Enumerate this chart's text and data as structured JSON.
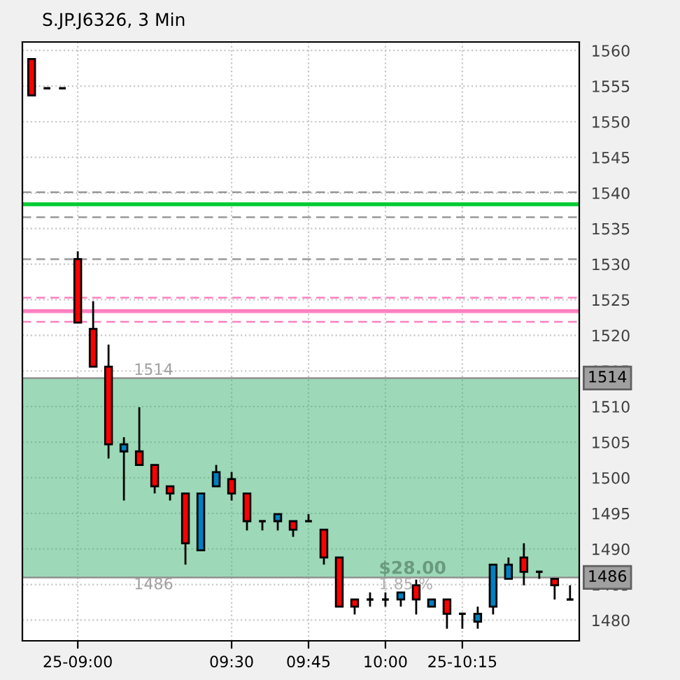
{
  "chart_data": {
    "type": "candlestick",
    "title": "S.JP.J6326, 3 Min",
    "x": [
      8.85,
      8.9,
      8.95,
      9.0,
      9.05,
      9.1,
      9.15,
      9.2,
      9.25,
      9.3,
      9.35,
      9.4,
      9.45,
      9.5,
      9.55,
      9.6,
      9.65,
      9.7,
      9.75,
      9.8,
      9.85,
      9.9,
      9.95,
      10.0,
      10.05,
      10.1,
      10.15,
      10.2,
      10.25,
      10.3,
      10.35,
      10.4,
      10.45,
      10.5,
      10.55,
      10.6
    ],
    "ohlc": [
      [
        1558.8,
        1558.8,
        1553.7,
        1553.7
      ],
      [
        1554.7,
        1554.7,
        1554.7,
        1554.7
      ],
      [
        1554.7,
        1554.7,
        1554.7,
        1554.7
      ],
      [
        1530.7,
        1531.8,
        1521.8,
        1521.8
      ],
      [
        1520.9,
        1524.8,
        1515.6,
        1515.6
      ],
      [
        1515.6,
        1518.7,
        1502.7,
        1504.7
      ],
      [
        1503.7,
        1505.7,
        1496.8,
        1504.7
      ],
      [
        1503.7,
        1509.9,
        1501.8,
        1501.8
      ],
      [
        1501.8,
        1501.8,
        1497.8,
        1498.8
      ],
      [
        1498.8,
        1498.8,
        1496.8,
        1497.8
      ],
      [
        1497.8,
        1497.8,
        1487.8,
        1490.8
      ],
      [
        1489.8,
        1497.8,
        1489.8,
        1497.8
      ],
      [
        1498.8,
        1501.8,
        1498.8,
        1500.8
      ],
      [
        1499.8,
        1500.8,
        1496.8,
        1497.8
      ],
      [
        1497.8,
        1497.8,
        1492.6,
        1493.9
      ],
      [
        1493.9,
        1493.9,
        1492.6,
        1493.9
      ],
      [
        1493.9,
        1494.9,
        1492.6,
        1494.9
      ],
      [
        1493.9,
        1493.9,
        1491.7,
        1492.7
      ],
      [
        1493.9,
        1494.9,
        1493.9,
        1493.9
      ],
      [
        1492.7,
        1492.7,
        1487.8,
        1488.8
      ],
      [
        1488.8,
        1488.8,
        1481.9,
        1481.9
      ],
      [
        1482.9,
        1482.9,
        1480.8,
        1481.9
      ],
      [
        1482.9,
        1483.9,
        1481.9,
        1482.9
      ],
      [
        1482.9,
        1483.9,
        1481.9,
        1482.9
      ],
      [
        1482.9,
        1483.9,
        1481.9,
        1483.9
      ],
      [
        1484.9,
        1485.7,
        1480.8,
        1482.9
      ],
      [
        1481.9,
        1482.9,
        1481.9,
        1482.9
      ],
      [
        1482.9,
        1482.9,
        1478.8,
        1480.9
      ],
      [
        1480.9,
        1480.9,
        1478.8,
        1480.9
      ],
      [
        1479.8,
        1481.9,
        1478.8,
        1480.9
      ],
      [
        1481.9,
        1487.8,
        1480.8,
        1487.8
      ],
      [
        1485.8,
        1488.8,
        1485.8,
        1487.8
      ],
      [
        1488.8,
        1490.8,
        1484.9,
        1486.8
      ],
      [
        1486.8,
        1486.8,
        1485.8,
        1486.8
      ],
      [
        1485.8,
        1485.8,
        1482.9,
        1484.9
      ],
      [
        1482.9,
        1484.9,
        1482.9,
        1482.9
      ]
    ],
    "colors": [
      "#ff0000",
      "#000000",
      "#000000",
      "#ff0000",
      "#ff0000",
      "#ff0000",
      "#0080c0",
      "#ff0000",
      "#ff0000",
      "#ff0000",
      "#ff0000",
      "#0080c0",
      "#0080c0",
      "#ff0000",
      "#ff0000",
      "#000000",
      "#0080c0",
      "#ff0000",
      "#000000",
      "#ff0000",
      "#ff0000",
      "#ff0000",
      "#000000",
      "#000000",
      "#0080c0",
      "#ff0000",
      "#0080c0",
      "#ff0000",
      "#000000",
      "#0080c0",
      "#0080c0",
      "#0080c0",
      "#ff0000",
      "#000000",
      "#ff0000",
      "#000000"
    ],
    "xlim": [
      8.82,
      10.63
    ],
    "ylim": [
      1477.1,
      1561.2
    ],
    "xticks": [
      {
        "value": 9.0,
        "label": "25-09:00"
      },
      {
        "value": 9.5,
        "label": "09:30"
      },
      {
        "value": 9.75,
        "label": "09:45"
      },
      {
        "value": 10.0,
        "label": "10:00"
      },
      {
        "value": 10.25,
        "label": "25-10:15"
      }
    ],
    "yticks": [
      1480,
      1485,
      1490,
      1495,
      1500,
      1505,
      1510,
      1515,
      1520,
      1525,
      1530,
      1535,
      1540,
      1545,
      1550,
      1555,
      1560
    ],
    "grid": true,
    "ref_lines": [
      {
        "axis": "y",
        "value": 1540.1,
        "label": null,
        "color": "#999999",
        "line_style": "dashed"
      },
      {
        "axis": "y",
        "value": 1538.4,
        "label": null,
        "color": "#00cc33",
        "line_style": "solid"
      },
      {
        "axis": "y",
        "value": 1536.6,
        "label": null,
        "color": "#999999",
        "line_style": "dashed"
      },
      {
        "axis": "y",
        "value": 1530.7,
        "label": null,
        "color": "#999999",
        "line_style": "dashed"
      },
      {
        "axis": "y",
        "value": 1525.3,
        "label": null,
        "color": "#ff80c0",
        "line_style": "dashed"
      },
      {
        "axis": "y",
        "value": 1523.4,
        "label": null,
        "color": "#ff80c0",
        "line_style": "solid"
      },
      {
        "axis": "y",
        "value": 1521.9,
        "label": null,
        "color": "#ff80c0",
        "line_style": "dashed"
      },
      {
        "axis": "y",
        "value": 1514,
        "label": "1514",
        "color": "#909090",
        "line_style": "solid"
      },
      {
        "axis": "y",
        "value": 1486,
        "label": "1486",
        "color": "#909090",
        "line_style": "solid"
      }
    ],
    "bands": [
      {
        "axis": "y",
        "from": 1486,
        "to": 1514,
        "color": "#3cb371"
      }
    ],
    "annotations": [
      "1514",
      "1486",
      "$28.00",
      "1.85 %"
    ]
  }
}
